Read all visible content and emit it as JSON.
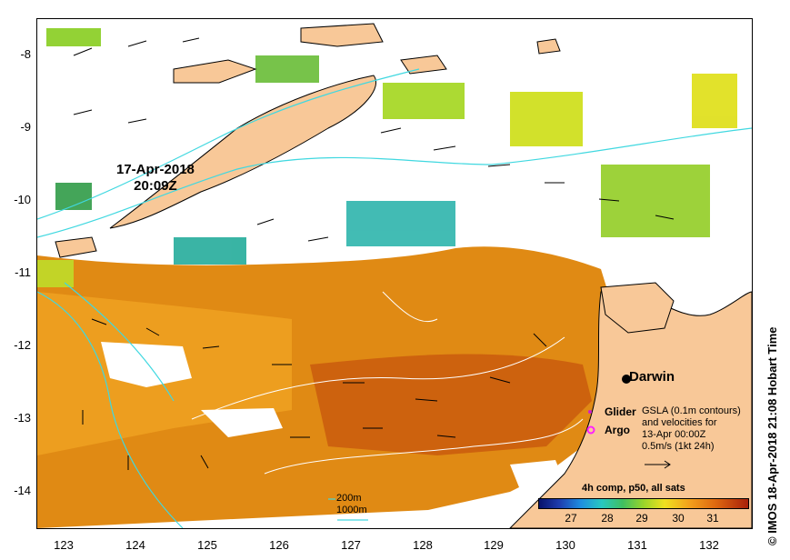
{
  "map": {
    "datetime_line1": "17-Apr-2018",
    "datetime_line2": "20:09Z",
    "lat_ticks": [
      "-8",
      "-9",
      "-10",
      "-11",
      "-12",
      "-13",
      "-14"
    ],
    "lon_ticks": [
      "123",
      "124",
      "125",
      "126",
      "127",
      "128",
      "129",
      "130",
      "131",
      "132"
    ],
    "place_darwin": "Darwin",
    "glider_label": "Glider",
    "argo_label": "Argo",
    "gsla_note_lines": [
      "GSLA (0.1m contours)",
      "and velocities for",
      "13-Apr 00:00Z",
      "0.5m/s (1kt 24h)"
    ],
    "isobath_200": "200m",
    "isobath_1000": "1000m",
    "colorbar_title": "4h comp, p50, all sats",
    "colorbar_ticks": [
      "27",
      "28",
      "29",
      "30",
      "31"
    ],
    "copyright": "© IMOS 18-Apr-2018 21:08 Hobart Time",
    "colors": {
      "land": "#f8c898",
      "isobath": "#40d8e0",
      "gsla_contour": "#ffffff",
      "glider": "#d020d0",
      "argo": "#ff20ff"
    }
  }
}
